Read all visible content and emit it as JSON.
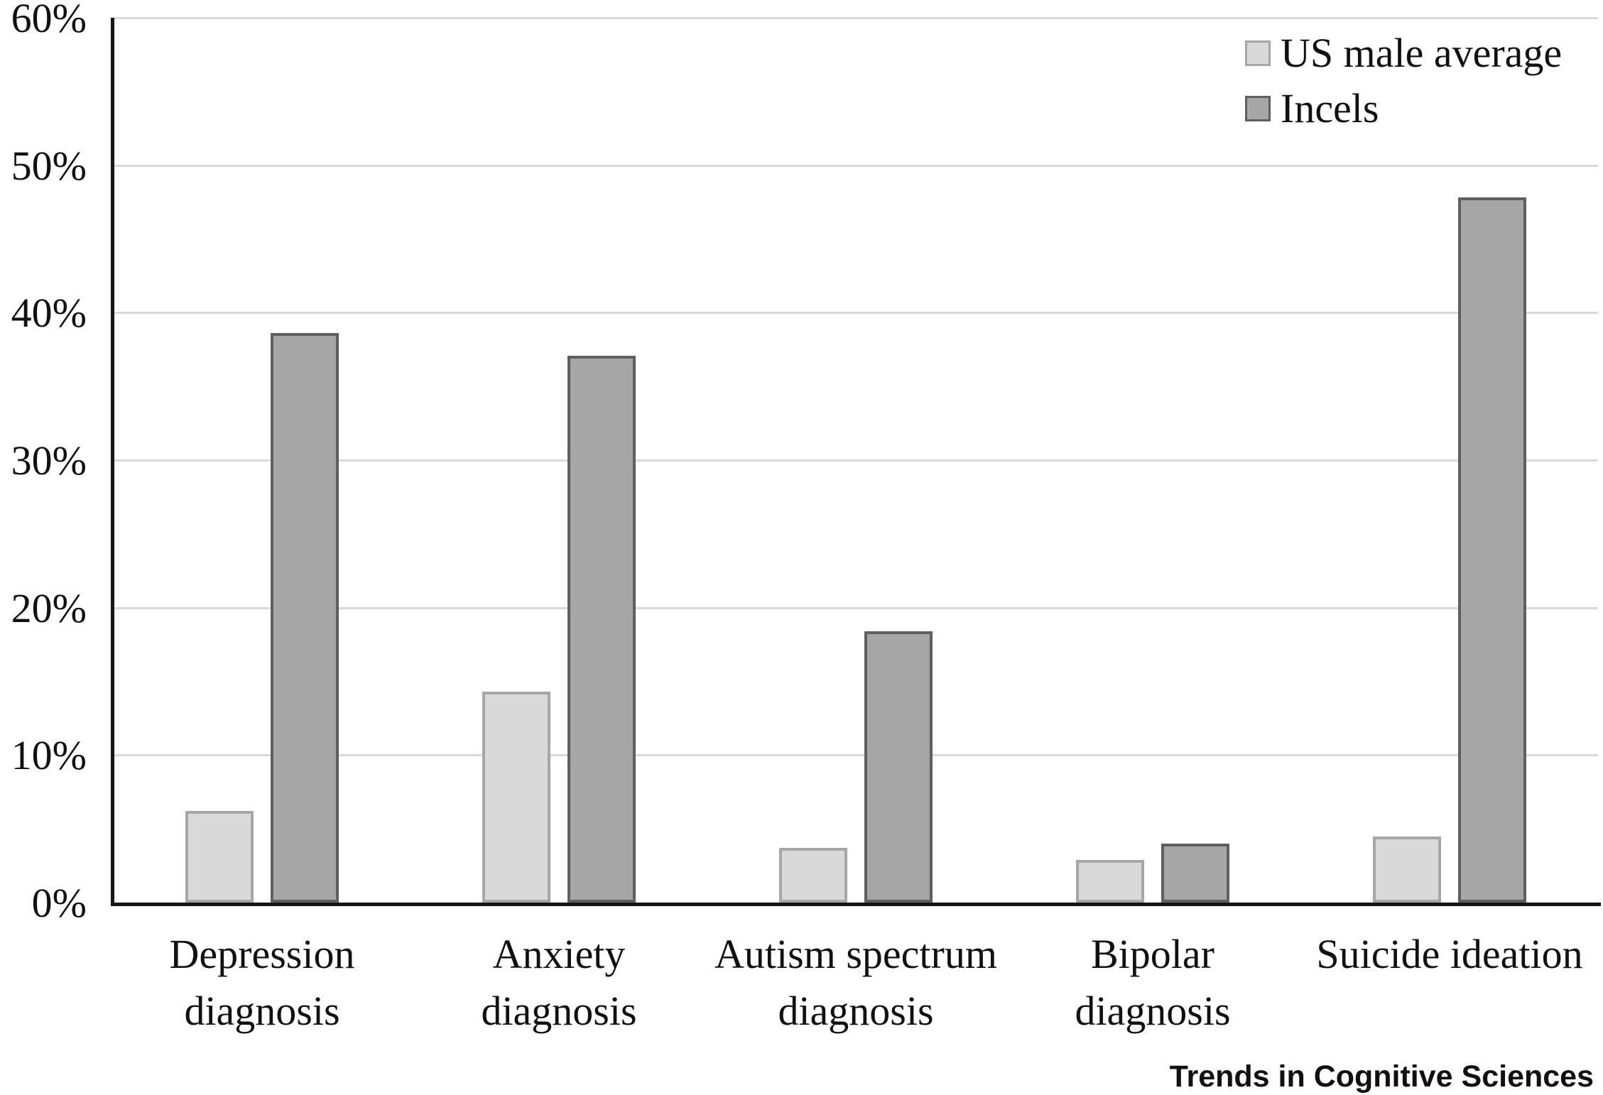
{
  "chart_data": {
    "type": "bar",
    "title": "",
    "xlabel": "",
    "ylabel": "",
    "categories": [
      "Depression diagnosis",
      "Anxiety diagnosis",
      "Autism spectrum diagnosis",
      "Bipolar diagnosis",
      "Suicide ideation"
    ],
    "category_wrap": [
      [
        "Depression",
        "diagnosis"
      ],
      [
        "Anxiety",
        "diagnosis"
      ],
      [
        "Autism spectrum",
        "diagnosis"
      ],
      [
        "Bipolar",
        "diagnosis"
      ],
      [
        "Suicide ideation"
      ]
    ],
    "series": [
      {
        "name": "US male average",
        "values": [
          6.2,
          14.3,
          3.7,
          2.9,
          4.5
        ],
        "fill": "#d9d9d9",
        "border": "#a6a6a6"
      },
      {
        "name": "Incels",
        "values": [
          38.6,
          37.1,
          18.4,
          4.0,
          47.8
        ],
        "fill": "#a6a6a6",
        "border": "#5f5f5f"
      }
    ],
    "unit": "%",
    "ylim": [
      0,
      60
    ],
    "ytick_step": 10,
    "ytick_labels": [
      "0%",
      "10%",
      "20%",
      "30%",
      "40%",
      "50%",
      "60%"
    ],
    "grid": true,
    "gridline_color": "#d9d9d9",
    "axis_color": "#151515",
    "legend_position": "top-right",
    "source_label": "Trends in Cognitive Sciences"
  }
}
